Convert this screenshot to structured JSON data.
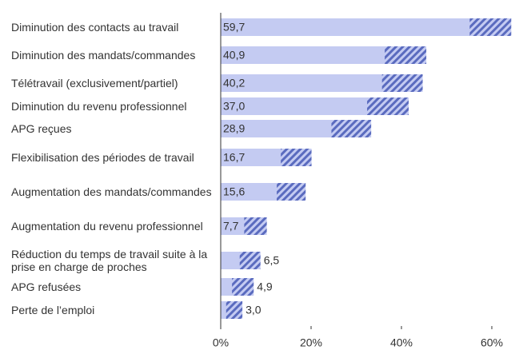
{
  "chart_data": {
    "type": "barh",
    "categories": [
      "Diminution des contacts au travail",
      "Diminution des mandats/commandes",
      "Télétravail (exclusivement/partiel)",
      "Diminution du revenu professionnel",
      "APG reçues",
      "Flexibilisation des périodes de travail",
      "Augmentation des mandats/commandes",
      "Augmentation du revenu professionnel",
      "Réduction du temps de travail suite à la prise en charge de proches",
      "APG refusées",
      "Perte de l’emploi"
    ],
    "values": [
      59.7,
      40.9,
      40.2,
      37.0,
      28.9,
      16.7,
      15.6,
      7.7,
      6.5,
      4.9,
      3.0
    ],
    "value_labels": [
      "59,7",
      "40,9",
      "40,2",
      "37,0",
      "28,9",
      "16,7",
      "15,6",
      "7,7",
      "6,5",
      "4,9",
      "3,0"
    ],
    "errors": [
      4.6,
      4.6,
      4.5,
      4.6,
      4.4,
      3.4,
      3.2,
      2.5,
      2.3,
      2.4,
      1.8
    ],
    "color": "#c4cbf2",
    "error_color": "#5a6bbf",
    "xlim": [
      0,
      66
    ],
    "xticks": [
      {
        "value": 0,
        "label": "0%"
      },
      {
        "value": 20,
        "label": "20%"
      },
      {
        "value": 40,
        "label": "40%"
      },
      {
        "value": 60,
        "label": "60%"
      }
    ]
  }
}
